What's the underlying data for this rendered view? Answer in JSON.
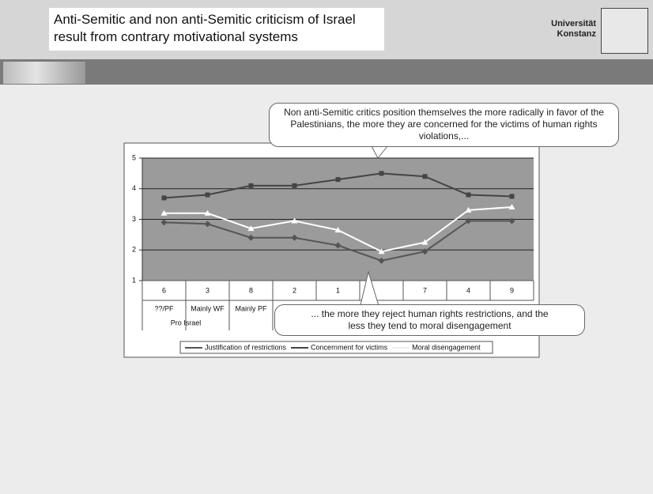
{
  "header": {
    "title": "Anti-Semitic and non anti-Semitic criticism of Israel result from contrary motivational systems",
    "logo": [
      "Universität",
      "Konstanz"
    ]
  },
  "callouts": [
    "Non anti-Semitic critics position themselves the more radically in favor of the Palestinians, the more they are concerned for the victims of human rights violations,...",
    "... the more they reject human rights restrictions, and the less they tend to moral disengagement"
  ],
  "chart_data": {
    "type": "line",
    "categories": [
      "6",
      "3",
      "8",
      "2",
      "1",
      null,
      "7",
      "4",
      "9"
    ],
    "subcategories": [
      "??/PF",
      "Mainly WF",
      "Mainly PF",
      null,
      null,
      null,
      null,
      null,
      null
    ],
    "group_label": "Pro Israel",
    "series": [
      {
        "name": "Justification of restrictions",
        "color": "#555555",
        "marker": "diamond",
        "values": [
          2.9,
          2.85,
          2.4,
          2.4,
          2.15,
          1.65,
          1.95,
          2.95,
          2.95
        ]
      },
      {
        "name": "Concernment for victims",
        "color": "#444444",
        "marker": "square",
        "values": [
          3.7,
          3.8,
          4.1,
          4.1,
          4.3,
          4.5,
          4.4,
          3.8,
          3.75
        ]
      },
      {
        "name": "Moral disengagement",
        "color": "#ffffff",
        "marker": "triangle",
        "values": [
          3.2,
          3.2,
          2.7,
          2.95,
          2.65,
          1.95,
          2.25,
          3.3,
          3.4
        ]
      }
    ],
    "ylim": [
      1,
      5
    ],
    "yticks": [
      1,
      2,
      3,
      4,
      5
    ],
    "grid": true,
    "legend": "bottom"
  }
}
